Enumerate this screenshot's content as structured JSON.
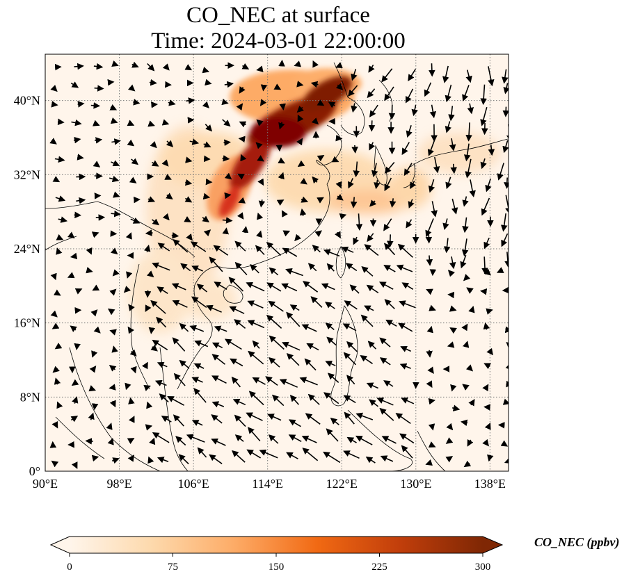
{
  "title_line1": "CO_NEC at surface",
  "title_line2": "Time: 2024-03-01 22:00:00",
  "map": {
    "lon_range": [
      90,
      140
    ],
    "lat_range": [
      0,
      45
    ],
    "lon_ticks": [
      {
        "value": 90,
        "label": "90°E"
      },
      {
        "value": 98,
        "label": "98°E"
      },
      {
        "value": 106,
        "label": "106°E"
      },
      {
        "value": 114,
        "label": "114°E"
      },
      {
        "value": 122,
        "label": "122°E"
      },
      {
        "value": 130,
        "label": "130°E"
      },
      {
        "value": 138,
        "label": "138°E"
      }
    ],
    "lat_ticks": [
      {
        "value": 0,
        "label": "0°"
      },
      {
        "value": 8,
        "label": "8°N"
      },
      {
        "value": 16,
        "label": "16°N"
      },
      {
        "value": 24,
        "label": "24°N"
      },
      {
        "value": 32,
        "label": "32°N"
      },
      {
        "value": 40,
        "label": "40°N"
      }
    ],
    "gridlines": true,
    "background_color": "#fff5eb"
  },
  "colorbar": {
    "label": "CO_NEC (ppbv)",
    "min": 0,
    "max": 300,
    "ticks": [
      "0",
      "75",
      "150",
      "225",
      "300"
    ],
    "tick_values": [
      0,
      75,
      150,
      225,
      300
    ],
    "colormap": "OrRd",
    "colors": [
      "#fff5eb",
      "#fdd9ac",
      "#fdab66",
      "#f16913",
      "#c13e0b",
      "#7f2704"
    ],
    "extend": "both"
  }
}
